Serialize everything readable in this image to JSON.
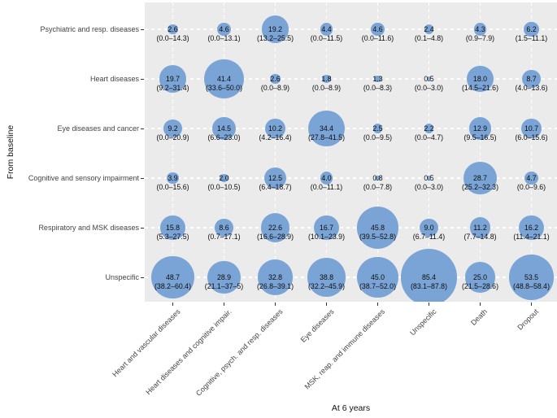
{
  "chart_data": {
    "type": "bubble",
    "title": "",
    "xlabel": "At 6 years",
    "ylabel": "From baseline",
    "legend": "none",
    "panel_background": "#ebebeb",
    "gridline_color": "#ffffff",
    "bubble_color": "#7ba4d6",
    "x_categories": [
      "Heart and vascular diseases",
      "Heart diseases and cognitive impair.",
      "Cognitive, psych. and resp. diseases",
      "Eye diseases",
      "MSK, reap. and immune diseases",
      "Unspecific",
      "Death",
      "Dropout"
    ],
    "y_categories": [
      "Psychiatric and resp. diseases",
      "Heart diseases",
      "Eye diseases and cancer",
      "Cognitive and sensory impairment",
      "Respiratory and MSK diseases",
      "Unspecific"
    ],
    "cells": [
      [
        {
          "v": "2.6",
          "ci": "(0.0–14.3)"
        },
        {
          "v": "4.6",
          "ci": "(0.0–13.1)"
        },
        {
          "v": "19.2",
          "ci": "(13.2–25.5)"
        },
        {
          "v": "4.4",
          "ci": "(0.0–11.5)"
        },
        {
          "v": "4.6",
          "ci": "(0.0–11.6)"
        },
        {
          "v": "2.4",
          "ci": "(0.1–4.8)"
        },
        {
          "v": "4.3",
          "ci": "(0.9–7.9)"
        },
        {
          "v": "6.2",
          "ci": "(1.5–11.1)"
        }
      ],
      [
        {
          "v": "19.7",
          "ci": "(9.2–31.4)"
        },
        {
          "v": "41.4",
          "ci": "(33.6–50.0)"
        },
        {
          "v": "2.6",
          "ci": "(0.0–8.9)"
        },
        {
          "v": "1.8",
          "ci": "(0.0–8.9)"
        },
        {
          "v": "1.3",
          "ci": "(0.0–8.3)"
        },
        {
          "v": "0.5",
          "ci": "(0.0–3.0)"
        },
        {
          "v": "18.0",
          "ci": "(14.5–21.6)"
        },
        {
          "v": "8.7",
          "ci": "(4.0–13.6)"
        }
      ],
      [
        {
          "v": "9.2",
          "ci": "(0.0–20.9)"
        },
        {
          "v": "14.5",
          "ci": "(6.6–23.0)"
        },
        {
          "v": "10.2",
          "ci": "(4.2–16.4)"
        },
        {
          "v": "34.4",
          "ci": "(27.8–41.5)"
        },
        {
          "v": "2.5",
          "ci": "(0.0–9.5)"
        },
        {
          "v": "2.2",
          "ci": "(0.0–4.7)"
        },
        {
          "v": "12.9",
          "ci": "(9.5–16.5)"
        },
        {
          "v": "10.7",
          "ci": "(6.0–15.6)"
        }
      ],
      [
        {
          "v": "3.9",
          "ci": "(0.0–15.6)"
        },
        {
          "v": "2.0",
          "ci": "(0.0–10.5)"
        },
        {
          "v": "12.5",
          "ci": "(6.4–18.7)"
        },
        {
          "v": "4.0",
          "ci": "(0.0–11.1)"
        },
        {
          "v": "0.8",
          "ci": "(0.0–7.8)"
        },
        {
          "v": "0.5",
          "ci": "(0.0–3.0)"
        },
        {
          "v": "28.7",
          "ci": "(25.2–32.3)"
        },
        {
          "v": "4.7",
          "ci": "(0.0–9.6)"
        }
      ],
      [
        {
          "v": "15.8",
          "ci": "(5.3–27.5)"
        },
        {
          "v": "8.6",
          "ci": "(0.7–17.1)"
        },
        {
          "v": "22.6",
          "ci": "(16.6–28.9)"
        },
        {
          "v": "16.7",
          "ci": "(10.1–23.9)"
        },
        {
          "v": "45.8",
          "ci": "(39.5–52.8)"
        },
        {
          "v": "9.0",
          "ci": "(6.7–11.4)"
        },
        {
          "v": "11.2",
          "ci": "(7.7–14.8)"
        },
        {
          "v": "16.2",
          "ci": "(11.4–21.1)"
        }
      ],
      [
        {
          "v": "48.7",
          "ci": "(38.2–60.4)"
        },
        {
          "v": "28.9",
          "ci": "(21.1–37–5)"
        },
        {
          "v": "32.8",
          "ci": "(26.8–39.1)"
        },
        {
          "v": "38.8",
          "ci": "(32.2–45.9)"
        },
        {
          "v": "45.0",
          "ci": "(38.7–52.0)"
        },
        {
          "v": "85.4",
          "ci": "(83.1–87.8)"
        },
        {
          "v": "25.0",
          "ci": "(21.5–28.6)"
        },
        {
          "v": "53.5",
          "ci": "(48.8–58.4)"
        }
      ]
    ]
  }
}
